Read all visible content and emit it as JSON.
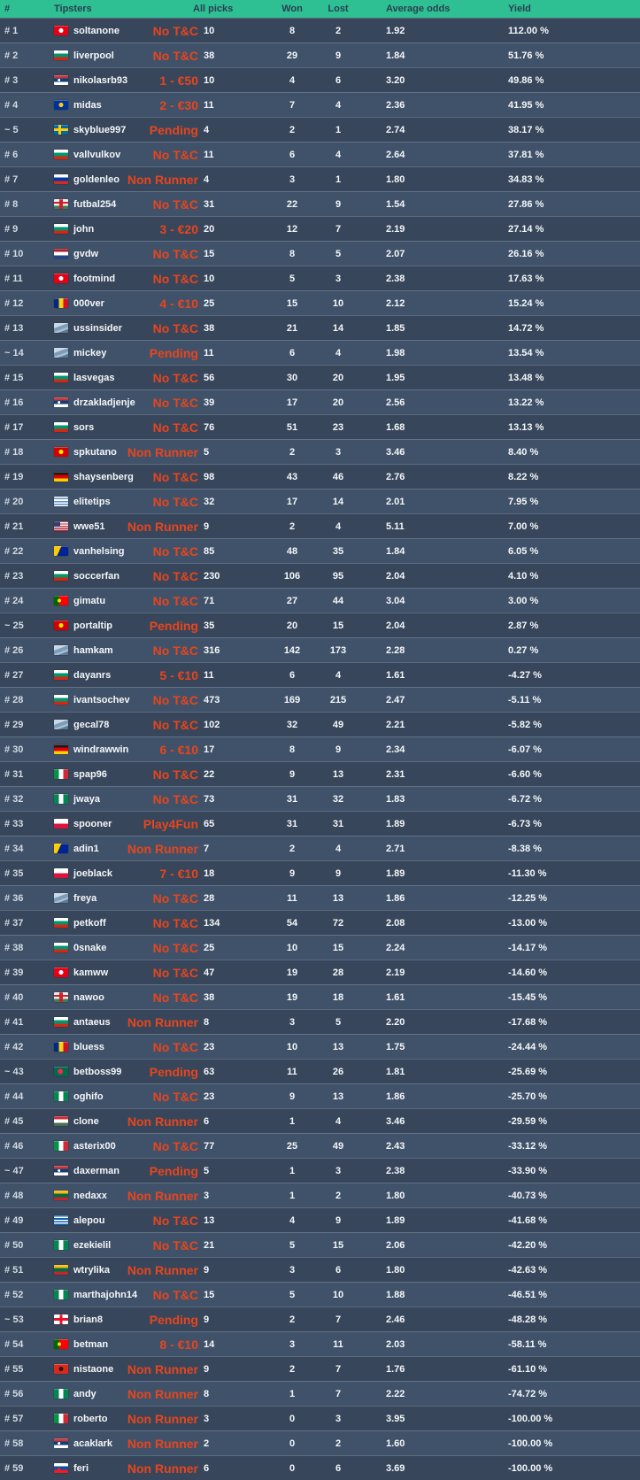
{
  "colors": {
    "header_bg": "#2ebf92",
    "header_text": "#2b3f52",
    "row_odd": "#37465b",
    "row_even": "#405269",
    "status_red": "#e8451c",
    "rank_text": "#d3dae1",
    "text": "#f5f7f9"
  },
  "table": {
    "headers": {
      "rank": "#",
      "tipsters": "Tipsters",
      "all_picks": "All picks",
      "won": "Won",
      "lost": "Lost",
      "avg_odds": "Average odds",
      "yield": "Yield"
    },
    "rows": [
      {
        "rank": "# 1",
        "name": "soltanone",
        "flag": "tunisia",
        "status": "No T&C",
        "picks": "10",
        "won": "8",
        "lost": "2",
        "odds": "1.92",
        "yield": "112.00 %"
      },
      {
        "rank": "# 2",
        "name": "liverpool",
        "flag": "bulgaria",
        "status": "No T&C",
        "picks": "38",
        "won": "29",
        "lost": "9",
        "odds": "1.84",
        "yield": "51.76 %"
      },
      {
        "rank": "# 3",
        "name": "nikolasrb93",
        "flag": "serbia",
        "status": "1 - €50",
        "picks": "10",
        "won": "4",
        "lost": "6",
        "odds": "3.20",
        "yield": "49.86 %"
      },
      {
        "rank": "# 4",
        "name": "midas",
        "flag": "eu",
        "status": "2 - €30",
        "picks": "11",
        "won": "7",
        "lost": "4",
        "odds": "2.36",
        "yield": "41.95 %"
      },
      {
        "rank": "~ 5",
        "name": "skyblue997",
        "flag": "sweden",
        "status": "Pending",
        "picks": "4",
        "won": "2",
        "lost": "1",
        "odds": "2.74",
        "yield": "38.17 %"
      },
      {
        "rank": "# 6",
        "name": "vallvulkov",
        "flag": "bulgaria",
        "status": "No T&C",
        "picks": "11",
        "won": "6",
        "lost": "4",
        "odds": "2.64",
        "yield": "37.81 %"
      },
      {
        "rank": "# 7",
        "name": "goldenleo",
        "flag": "russia",
        "status": "Non Runner",
        "picks": "4",
        "won": "3",
        "lost": "1",
        "odds": "1.80",
        "yield": "34.83 %"
      },
      {
        "rank": "# 8",
        "name": "futbal254",
        "flag": "hungary_arms",
        "status": "No T&C",
        "picks": "31",
        "won": "22",
        "lost": "9",
        "odds": "1.54",
        "yield": "27.86 %"
      },
      {
        "rank": "# 9",
        "name": "john",
        "flag": "bulgaria",
        "status": "3 - €20",
        "picks": "20",
        "won": "12",
        "lost": "7",
        "odds": "2.19",
        "yield": "27.14 %"
      },
      {
        "rank": "# 10",
        "name": "gvdw",
        "flag": "netherlands",
        "status": "No T&C",
        "picks": "15",
        "won": "8",
        "lost": "5",
        "odds": "2.07",
        "yield": "26.16 %"
      },
      {
        "rank": "# 11",
        "name": "footmind",
        "flag": "tunisia",
        "status": "No T&C",
        "picks": "10",
        "won": "5",
        "lost": "3",
        "odds": "2.38",
        "yield": "17.63 %"
      },
      {
        "rank": "# 12",
        "name": "000ver",
        "flag": "romania",
        "status": "4 - €10",
        "picks": "25",
        "won": "15",
        "lost": "10",
        "odds": "2.12",
        "yield": "15.24 %"
      },
      {
        "rank": "# 13",
        "name": "ussinsider",
        "flag": "generic",
        "status": "No T&C",
        "picks": "38",
        "won": "21",
        "lost": "14",
        "odds": "1.85",
        "yield": "14.72 %"
      },
      {
        "rank": "~ 14",
        "name": "mickey",
        "flag": "generic",
        "status": "Pending",
        "picks": "11",
        "won": "6",
        "lost": "4",
        "odds": "1.98",
        "yield": "13.54 %"
      },
      {
        "rank": "# 15",
        "name": "lasvegas",
        "flag": "bulgaria",
        "status": "No T&C",
        "picks": "56",
        "won": "30",
        "lost": "20",
        "odds": "1.95",
        "yield": "13.48 %"
      },
      {
        "rank": "# 16",
        "name": "drzakladjenje",
        "flag": "serbia",
        "status": "No T&C",
        "picks": "39",
        "won": "17",
        "lost": "20",
        "odds": "2.56",
        "yield": "13.22 %"
      },
      {
        "rank": "# 17",
        "name": "sors",
        "flag": "bulgaria",
        "status": "No T&C",
        "picks": "76",
        "won": "51",
        "lost": "23",
        "odds": "1.68",
        "yield": "13.13 %"
      },
      {
        "rank": "# 18",
        "name": "spkutano",
        "flag": "macedonia",
        "status": "Non Runner",
        "picks": "5",
        "won": "2",
        "lost": "3",
        "odds": "3.46",
        "yield": "8.40 %"
      },
      {
        "rank": "# 19",
        "name": "shaysenberg",
        "flag": "germany",
        "status": "No T&C",
        "picks": "98",
        "won": "43",
        "lost": "46",
        "odds": "2.76",
        "yield": "8.22 %"
      },
      {
        "rank": "# 20",
        "name": "elitetips",
        "flag": "uruguay",
        "status": "No T&C",
        "picks": "32",
        "won": "17",
        "lost": "14",
        "odds": "2.01",
        "yield": "7.95 %"
      },
      {
        "rank": "# 21",
        "name": "wwe51",
        "flag": "usa",
        "status": "Non Runner",
        "picks": "9",
        "won": "2",
        "lost": "4",
        "odds": "5.11",
        "yield": "7.00 %"
      },
      {
        "rank": "# 22",
        "name": "vanhelsing",
        "flag": "bosnia",
        "status": "No T&C",
        "picks": "85",
        "won": "48",
        "lost": "35",
        "odds": "1.84",
        "yield": "6.05 %"
      },
      {
        "rank": "# 23",
        "name": "soccerfan",
        "flag": "bulgaria",
        "status": "No T&C",
        "picks": "230",
        "won": "106",
        "lost": "95",
        "odds": "2.04",
        "yield": "4.10 %"
      },
      {
        "rank": "# 24",
        "name": "gimatu",
        "flag": "portugal",
        "status": "No T&C",
        "picks": "71",
        "won": "27",
        "lost": "44",
        "odds": "3.04",
        "yield": "3.00 %"
      },
      {
        "rank": "~ 25",
        "name": "portaltip",
        "flag": "macedonia",
        "status": "Pending",
        "picks": "35",
        "won": "20",
        "lost": "15",
        "odds": "2.04",
        "yield": "2.87 %"
      },
      {
        "rank": "# 26",
        "name": "hamkam",
        "flag": "generic",
        "status": "No T&C",
        "picks": "316",
        "won": "142",
        "lost": "173",
        "odds": "2.28",
        "yield": "0.27 %"
      },
      {
        "rank": "# 27",
        "name": "dayanrs",
        "flag": "bulgaria",
        "status": "5 - €10",
        "picks": "11",
        "won": "6",
        "lost": "4",
        "odds": "1.61",
        "yield": "-4.27 %"
      },
      {
        "rank": "# 28",
        "name": "ivantsochev",
        "flag": "bulgaria",
        "status": "No T&C",
        "picks": "473",
        "won": "169",
        "lost": "215",
        "odds": "2.47",
        "yield": "-5.11 %"
      },
      {
        "rank": "# 29",
        "name": "gecal78",
        "flag": "generic",
        "status": "No T&C",
        "picks": "102",
        "won": "32",
        "lost": "49",
        "odds": "2.21",
        "yield": "-5.82 %"
      },
      {
        "rank": "# 30",
        "name": "windrawwin",
        "flag": "germany",
        "status": "6 - €10",
        "picks": "17",
        "won": "8",
        "lost": "9",
        "odds": "2.34",
        "yield": "-6.07 %"
      },
      {
        "rank": "# 31",
        "name": "spap96",
        "flag": "italy",
        "status": "No T&C",
        "picks": "22",
        "won": "9",
        "lost": "13",
        "odds": "2.31",
        "yield": "-6.60 %"
      },
      {
        "rank": "# 32",
        "name": "jwaya",
        "flag": "nigeria",
        "status": "No T&C",
        "picks": "73",
        "won": "31",
        "lost": "32",
        "odds": "1.83",
        "yield": "-6.72 %"
      },
      {
        "rank": "# 33",
        "name": "spooner",
        "flag": "poland",
        "status": "Play4Fun",
        "picks": "65",
        "won": "31",
        "lost": "31",
        "odds": "1.89",
        "yield": "-6.73 %"
      },
      {
        "rank": "# 34",
        "name": "adin1",
        "flag": "bosnia",
        "status": "Non Runner",
        "picks": "7",
        "won": "2",
        "lost": "4",
        "odds": "2.71",
        "yield": "-8.38 %"
      },
      {
        "rank": "# 35",
        "name": "joeblack",
        "flag": "poland",
        "status": "7 - €10",
        "picks": "18",
        "won": "9",
        "lost": "9",
        "odds": "1.89",
        "yield": "-11.30 %"
      },
      {
        "rank": "# 36",
        "name": "freya",
        "flag": "generic",
        "status": "No T&C",
        "picks": "28",
        "won": "11",
        "lost": "13",
        "odds": "1.86",
        "yield": "-12.25 %"
      },
      {
        "rank": "# 37",
        "name": "petkoff",
        "flag": "bulgaria",
        "status": "No T&C",
        "picks": "134",
        "won": "54",
        "lost": "72",
        "odds": "2.08",
        "yield": "-13.00 %"
      },
      {
        "rank": "# 38",
        "name": "0snake",
        "flag": "bulgaria",
        "status": "No T&C",
        "picks": "25",
        "won": "10",
        "lost": "15",
        "odds": "2.24",
        "yield": "-14.17 %"
      },
      {
        "rank": "# 39",
        "name": "kamww",
        "flag": "tunisia",
        "status": "No T&C",
        "picks": "47",
        "won": "19",
        "lost": "28",
        "odds": "2.19",
        "yield": "-14.60 %"
      },
      {
        "rank": "# 40",
        "name": "nawoo",
        "flag": "hungary_arms",
        "status": "No T&C",
        "picks": "38",
        "won": "19",
        "lost": "18",
        "odds": "1.61",
        "yield": "-15.45 %"
      },
      {
        "rank": "# 41",
        "name": "antaeus",
        "flag": "bulgaria",
        "status": "Non Runner",
        "picks": "8",
        "won": "3",
        "lost": "5",
        "odds": "2.20",
        "yield": "-17.68 %"
      },
      {
        "rank": "# 42",
        "name": "bluess",
        "flag": "romania",
        "status": "No T&C",
        "picks": "23",
        "won": "10",
        "lost": "13",
        "odds": "1.75",
        "yield": "-24.44 %"
      },
      {
        "rank": "~ 43",
        "name": "betboss99",
        "flag": "bangladesh",
        "status": "Pending",
        "picks": "63",
        "won": "11",
        "lost": "26",
        "odds": "1.81",
        "yield": "-25.69 %"
      },
      {
        "rank": "# 44",
        "name": "oghifo",
        "flag": "nigeria",
        "status": "No T&C",
        "picks": "23",
        "won": "9",
        "lost": "13",
        "odds": "1.86",
        "yield": "-25.70 %"
      },
      {
        "rank": "# 45",
        "name": "clone",
        "flag": "hungary",
        "status": "Non Runner",
        "picks": "6",
        "won": "1",
        "lost": "4",
        "odds": "3.46",
        "yield": "-29.59 %"
      },
      {
        "rank": "# 46",
        "name": "asterix00",
        "flag": "italy",
        "status": "No T&C",
        "picks": "77",
        "won": "25",
        "lost": "49",
        "odds": "2.43",
        "yield": "-33.12 %"
      },
      {
        "rank": "~ 47",
        "name": "daxerman",
        "flag": "serbia",
        "status": "Pending",
        "picks": "5",
        "won": "1",
        "lost": "3",
        "odds": "2.38",
        "yield": "-33.90 %"
      },
      {
        "rank": "# 48",
        "name": "nedaxx",
        "flag": "lithuania",
        "status": "Non Runner",
        "picks": "3",
        "won": "1",
        "lost": "2",
        "odds": "1.80",
        "yield": "-40.73 %"
      },
      {
        "rank": "# 49",
        "name": "alepou",
        "flag": "greece",
        "status": "No T&C",
        "picks": "13",
        "won": "4",
        "lost": "9",
        "odds": "1.89",
        "yield": "-41.68 %"
      },
      {
        "rank": "# 50",
        "name": "ezekielil",
        "flag": "nigeria",
        "status": "No T&C",
        "picks": "21",
        "won": "5",
        "lost": "15",
        "odds": "2.06",
        "yield": "-42.20 %"
      },
      {
        "rank": "# 51",
        "name": "wtrylika",
        "flag": "lithuania",
        "status": "Non Runner",
        "picks": "9",
        "won": "3",
        "lost": "6",
        "odds": "1.80",
        "yield": "-42.63 %"
      },
      {
        "rank": "# 52",
        "name": "marthajohn14",
        "flag": "nigeria",
        "status": "No T&C",
        "picks": "15",
        "won": "5",
        "lost": "10",
        "odds": "1.88",
        "yield": "-46.51 %"
      },
      {
        "rank": "~ 53",
        "name": "brian8",
        "flag": "georgia",
        "status": "Pending",
        "picks": "9",
        "won": "2",
        "lost": "7",
        "odds": "2.46",
        "yield": "-48.28 %"
      },
      {
        "rank": "# 54",
        "name": "betman",
        "flag": "portugal",
        "status": "8 - €10",
        "picks": "14",
        "won": "3",
        "lost": "11",
        "odds": "2.03",
        "yield": "-58.11 %"
      },
      {
        "rank": "# 55",
        "name": "nistaone",
        "flag": "albania",
        "status": "Non Runner",
        "picks": "9",
        "won": "2",
        "lost": "7",
        "odds": "1.76",
        "yield": "-61.10 %"
      },
      {
        "rank": "# 56",
        "name": "andy",
        "flag": "nigeria",
        "status": "Non Runner",
        "picks": "8",
        "won": "1",
        "lost": "7",
        "odds": "2.22",
        "yield": "-74.72 %"
      },
      {
        "rank": "# 57",
        "name": "roberto",
        "flag": "italy",
        "status": "Non Runner",
        "picks": "3",
        "won": "0",
        "lost": "3",
        "odds": "3.95",
        "yield": "-100.00 %"
      },
      {
        "rank": "# 58",
        "name": "acaklark",
        "flag": "serbia",
        "status": "Non Runner",
        "picks": "2",
        "won": "0",
        "lost": "2",
        "odds": "1.60",
        "yield": "-100.00 %"
      },
      {
        "rank": "# 59",
        "name": "feri",
        "flag": "slovakia",
        "status": "Non Runner",
        "picks": "6",
        "won": "0",
        "lost": "6",
        "odds": "3.69",
        "yield": "-100.00 %"
      }
    ]
  },
  "flags": {
    "tunisia": "radial-gradient(circle at 50% 50%, #ffffff 0 2.5px, #e70013 2.5px)",
    "bulgaria": "linear-gradient(to bottom, #ffffff 0 33%, #00966e 33% 66%, #d62612 66%)",
    "serbia": "radial-gradient(circle at 35% 50%, #ffffff 0 1.5px, rgba(0,0,0,0) 1.5px), linear-gradient(to bottom, #c6363c 0 33%, #0c4076 33% 66%, #ffffff 66%)",
    "eu": "radial-gradient(circle at 50% 50%, #ffcc00 0 2.5px, #003399 2.5px)",
    "sweden": "linear-gradient(to right, rgba(0,0,0,0) 0 5px, #fecc00 5px 8px, rgba(0,0,0,0) 8px), linear-gradient(to bottom, #006aa7 0 4px, #fecc00 4px 7px, #006aa7 7px)",
    "russia": "linear-gradient(to bottom, #ffffff 0 33%, #0039a6 33% 66%, #d52b1e 66%)",
    "hungary": "linear-gradient(to bottom, #ce2939 0 33%, #ffffff 33% 66%, #477050 66%)",
    "hungary_arms": "linear-gradient(to right, rgba(0,0,0,0) 0 6px, #cc2128 6px 10px, rgba(0,0,0,0) 10px), linear-gradient(to bottom, #ededed 0 28%, #cc2128 28% 44%, #ededed 44% 66%, #3f7c4e 66%)",
    "netherlands": "linear-gradient(to bottom, #ae1c28 0 33%, #ffffff 33% 66%, #21468b 66%)",
    "romania": "linear-gradient(to right, #002b7f 0 33%, #fcd116 33% 66%, #ce1126 66%)",
    "generic": "linear-gradient(160deg, #c7d8e6 0 35%, #7d9cb8 35% 60%, #a8bfd3 60% 75%, #5d7a96 75%)",
    "macedonia": "radial-gradient(circle at 50% 50%, #ffe600 0 2.5px, #d20000 2.5px)",
    "germany": "linear-gradient(to bottom, #1a1a1a 0 33%, #dd0000 33% 66%, #ffce00 66%)",
    "uruguay": "repeating-linear-gradient(to bottom, #ffffff 0 1.6px, #5b8fc9 1.6px 3.2px)",
    "usa": "linear-gradient(#3c3b6e,#3c3b6e) left top/7px 6px no-repeat, repeating-linear-gradient(to bottom, #b22234 0 1.2px, #ffffff 1.2px 2.4px)",
    "bosnia": "linear-gradient(115deg, #fecb00 0 40%, #002395 40%)",
    "portugal": "radial-gradient(circle at 38% 50%, #ffe600 0 2px, rgba(0,0,0,0) 2px), linear-gradient(to right, #006600 0 38%, #ff0000 38%)",
    "italy": "linear-gradient(to right, #009246 0 33%, #ffffff 33% 66%, #ce2b37 66%)",
    "nigeria": "linear-gradient(to right, #008751 0 33%, #ffffff 33% 66%, #008751 66%)",
    "poland": "linear-gradient(to bottom, #ffffff 0 50%, #dc143c 50%)",
    "bangladesh": "radial-gradient(circle at 45% 50%, #f42a41 0 3px, #006a4e 3px)",
    "lithuania": "linear-gradient(to bottom, #fdb913 0 33%, #006a44 33% 66%, #c1272d 66%)",
    "greece": "repeating-linear-gradient(to bottom, #0d5eaf 0 1.6px, #ffffff 1.6px 3.2px)",
    "georgia": "linear-gradient(to right, rgba(0,0,0,0) 0 6.5px, #e8112d 6.5px 9.5px, rgba(0,0,0,0) 9.5px), linear-gradient(to bottom, #ffffff 0 4px, #e8112d 4px 7px, #ffffff 7px)",
    "albania": "radial-gradient(circle at 50% 50%, #2a1a1a 0 2.5px, #da291c 2.5px)",
    "slovakia": "radial-gradient(circle at 35% 60%, #ee1c25 0 1.5px, rgba(0,0,0,0) 1.5px), linear-gradient(to bottom, #ffffff 0 33%, #0b4ea2 33% 66%, #ee1c25 66%)"
  }
}
